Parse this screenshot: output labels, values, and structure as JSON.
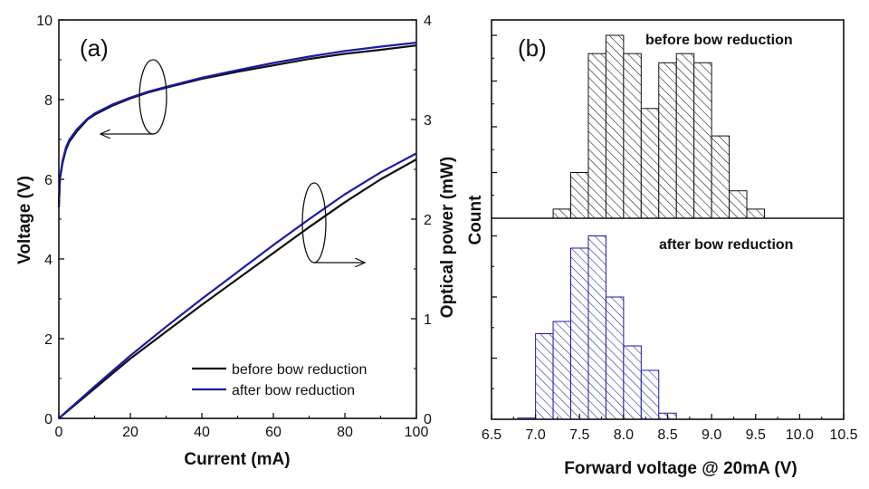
{
  "colors": {
    "before": "#111111",
    "after": "#1a1aa6",
    "axis": "#111111"
  },
  "chart_data": [
    {
      "type": "line",
      "panel_label": "(a)",
      "xlabel": "Current (mA)",
      "ylabel_left": "Voltage (V)",
      "ylabel_right": "Optical power (mW)",
      "xlim": [
        0,
        100
      ],
      "ylim_left": [
        0,
        10
      ],
      "ylim_right": [
        0,
        4
      ],
      "xticks": [
        "0",
        "20",
        "40",
        "60",
        "80",
        "100"
      ],
      "yticks_left": [
        "0",
        "2",
        "4",
        "6",
        "8",
        "10"
      ],
      "yticks_right": [
        "0",
        "1",
        "2",
        "3",
        "4"
      ],
      "legend": [
        "before bow reduction",
        "after bow reduction"
      ],
      "legend_position": "bottom-right",
      "series": [
        {
          "name": "before bow reduction",
          "quantity": "voltage",
          "axis": "left",
          "x": [
            0,
            0.3,
            1,
            2,
            3,
            5,
            8,
            10,
            15,
            20,
            25,
            30,
            40,
            50,
            60,
            70,
            80,
            90,
            100
          ],
          "y": [
            5.3,
            6.0,
            6.4,
            6.75,
            6.95,
            7.2,
            7.5,
            7.62,
            7.85,
            8.03,
            8.18,
            8.3,
            8.52,
            8.7,
            8.86,
            9.02,
            9.15,
            9.25,
            9.36
          ]
        },
        {
          "name": "after bow reduction",
          "quantity": "voltage",
          "axis": "left",
          "x": [
            0,
            0.3,
            1,
            2,
            3,
            5,
            8,
            10,
            15,
            20,
            25,
            30,
            40,
            50,
            60,
            70,
            80,
            90,
            100
          ],
          "y": [
            5.3,
            6.05,
            6.45,
            6.8,
            7.0,
            7.25,
            7.52,
            7.65,
            7.88,
            8.05,
            8.2,
            8.32,
            8.55,
            8.74,
            8.92,
            9.08,
            9.22,
            9.33,
            9.43
          ]
        },
        {
          "name": "before bow reduction",
          "quantity": "optical power",
          "axis": "right",
          "x": [
            0,
            10,
            20,
            30,
            40,
            50,
            60,
            70,
            80,
            90,
            100
          ],
          "y": [
            0,
            0.3,
            0.6,
            0.87,
            1.14,
            1.4,
            1.66,
            1.92,
            2.17,
            2.4,
            2.6
          ]
        },
        {
          "name": "after bow reduction",
          "quantity": "optical power",
          "axis": "right",
          "x": [
            0,
            10,
            20,
            30,
            40,
            50,
            60,
            70,
            80,
            90,
            100
          ],
          "y": [
            0,
            0.32,
            0.63,
            0.92,
            1.2,
            1.47,
            1.74,
            2.0,
            2.25,
            2.47,
            2.66
          ]
        }
      ],
      "annotations": [
        {
          "type": "ellipse-arrow",
          "target_axis": "left",
          "points_to": "left",
          "ellipse_center": [
            27,
            8.0
          ],
          "arrow_end": [
            12,
            7.3
          ]
        },
        {
          "type": "ellipse-arrow",
          "target_axis": "right",
          "points_to": "right",
          "ellipse_center": [
            72,
            1.95
          ],
          "arrow_end": [
            87,
            1.55
          ]
        }
      ]
    },
    {
      "type": "histogram",
      "panel_label": "(b)",
      "xlabel": "Forward voltage @ 20mA (V)",
      "ylabel": "Count",
      "xlim": [
        6.5,
        10.5
      ],
      "xticks": [
        "6.5",
        "7.0",
        "7.5",
        "8.0",
        "8.5",
        "9.0",
        "9.5",
        "10.0",
        "10.5"
      ],
      "bin_width": 0.2,
      "series": [
        {
          "name": "before bow reduction",
          "label": "before bow reduction",
          "bin_starts": [
            7.2,
            7.4,
            7.6,
            7.8,
            8.0,
            8.2,
            8.4,
            8.6,
            8.8,
            9.0,
            9.2,
            9.4
          ],
          "counts": [
            1,
            5,
            18,
            20,
            18,
            12,
            17,
            18,
            17,
            9,
            3,
            1
          ]
        },
        {
          "name": "after bow reduction",
          "label": "after bow reduction",
          "bin_starts": [
            6.8,
            7.0,
            7.2,
            7.4,
            7.6,
            7.8,
            8.0,
            8.2,
            8.4
          ],
          "counts": [
            0.1,
            7,
            8,
            14,
            15,
            10,
            6,
            4,
            0.5
          ]
        }
      ]
    }
  ]
}
